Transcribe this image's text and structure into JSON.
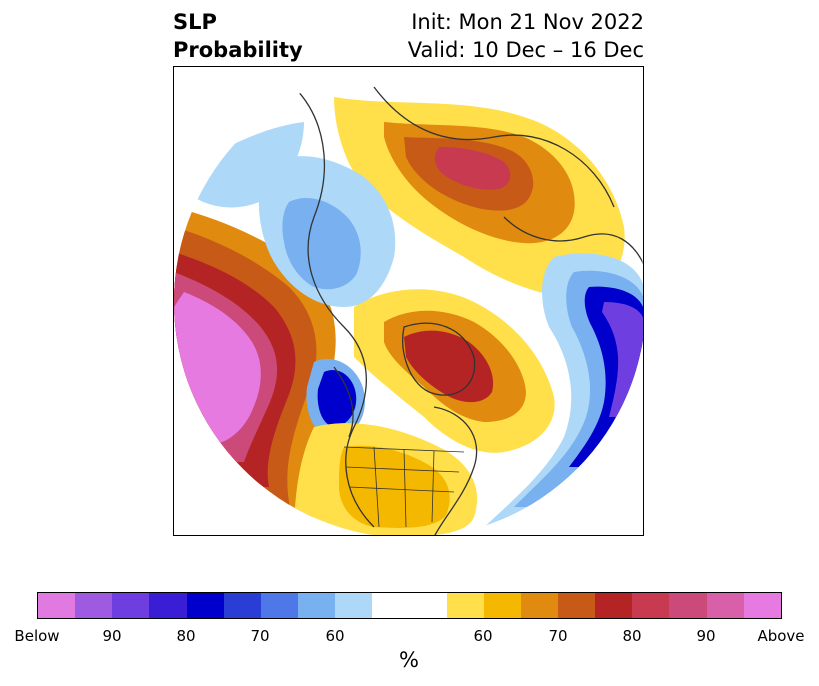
{
  "title": {
    "left_line1": "SLP",
    "left_line2": "Probability",
    "right_line1": "Init: Mon 21 Nov 2022",
    "right_line2": "Valid: 10 Dec – 16 Dec"
  },
  "colorbar": {
    "colors": [
      "#e07ae0",
      "#9e5ae0",
      "#6e3ee0",
      "#3a1ed6",
      "#0000cc",
      "#2a3ed6",
      "#4e78e8",
      "#78b0f0",
      "#aed8f8",
      "#ffffff",
      "#ffe04a",
      "#f5b800",
      "#e08a10",
      "#c85a18",
      "#b42424",
      "#c83a50",
      "#cc4a7a",
      "#d860a8",
      "#e67ae0"
    ],
    "tick_labels": [
      "Below",
      "90",
      "80",
      "70",
      "60",
      "60",
      "70",
      "80",
      "90",
      "Above"
    ],
    "unit_label": "%"
  },
  "map": {
    "projection": "north-polar-stereographic",
    "palette": {
      "below_strong": "#6e3ee0",
      "below_mid": "#0000cc",
      "below_weak": "#78b0f0",
      "below_faint": "#aed8f8",
      "above_faint": "#ffe04a",
      "above_weak": "#f5b800",
      "above_mid": "#e08a10",
      "above_strong": "#c85a18",
      "above_very_strong": "#b42424",
      "above_extreme": "#e67ae0",
      "coastline": "#333333"
    }
  }
}
